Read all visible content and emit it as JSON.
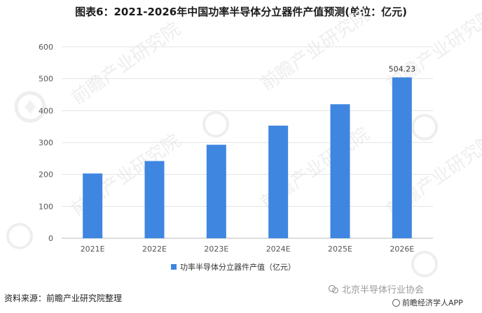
{
  "page": {
    "title": "图表6：2021-2026年中国功率半导体分立器件产值预测(单位：亿元)",
    "source": "资料来源：前瞻产业研究院整理",
    "brand": "北京半导体行业协会",
    "app": "前瞻经济学人APP",
    "watermark_text": "前瞻产业研究院"
  },
  "colors": {
    "bar": "#3F86E0",
    "grid": "#E3E3E3",
    "axis": "#BBBBBB",
    "watermark": "#EEEEEE"
  },
  "chart_data": {
    "type": "bar",
    "title": "图表6：2021-2026年中国功率半导体分立器件产值预测(单位：亿元)",
    "categories": [
      "2021E",
      "2022E",
      "2023E",
      "2024E",
      "2025E",
      "2026E"
    ],
    "series": [
      {
        "name": "功率半导体分立器件产值（亿元）",
        "values": [
          203,
          242,
          293,
          353,
          420,
          504.23
        ],
        "labels": [
          "",
          "",
          "",
          "",
          "",
          "504.23"
        ]
      }
    ],
    "y_ticks": [
      0,
      100,
      200,
      300,
      400,
      500,
      600
    ],
    "ylim": [
      0,
      600
    ],
    "xlabel": "",
    "ylabel": "",
    "grid": true,
    "legend": "bottom-center"
  }
}
